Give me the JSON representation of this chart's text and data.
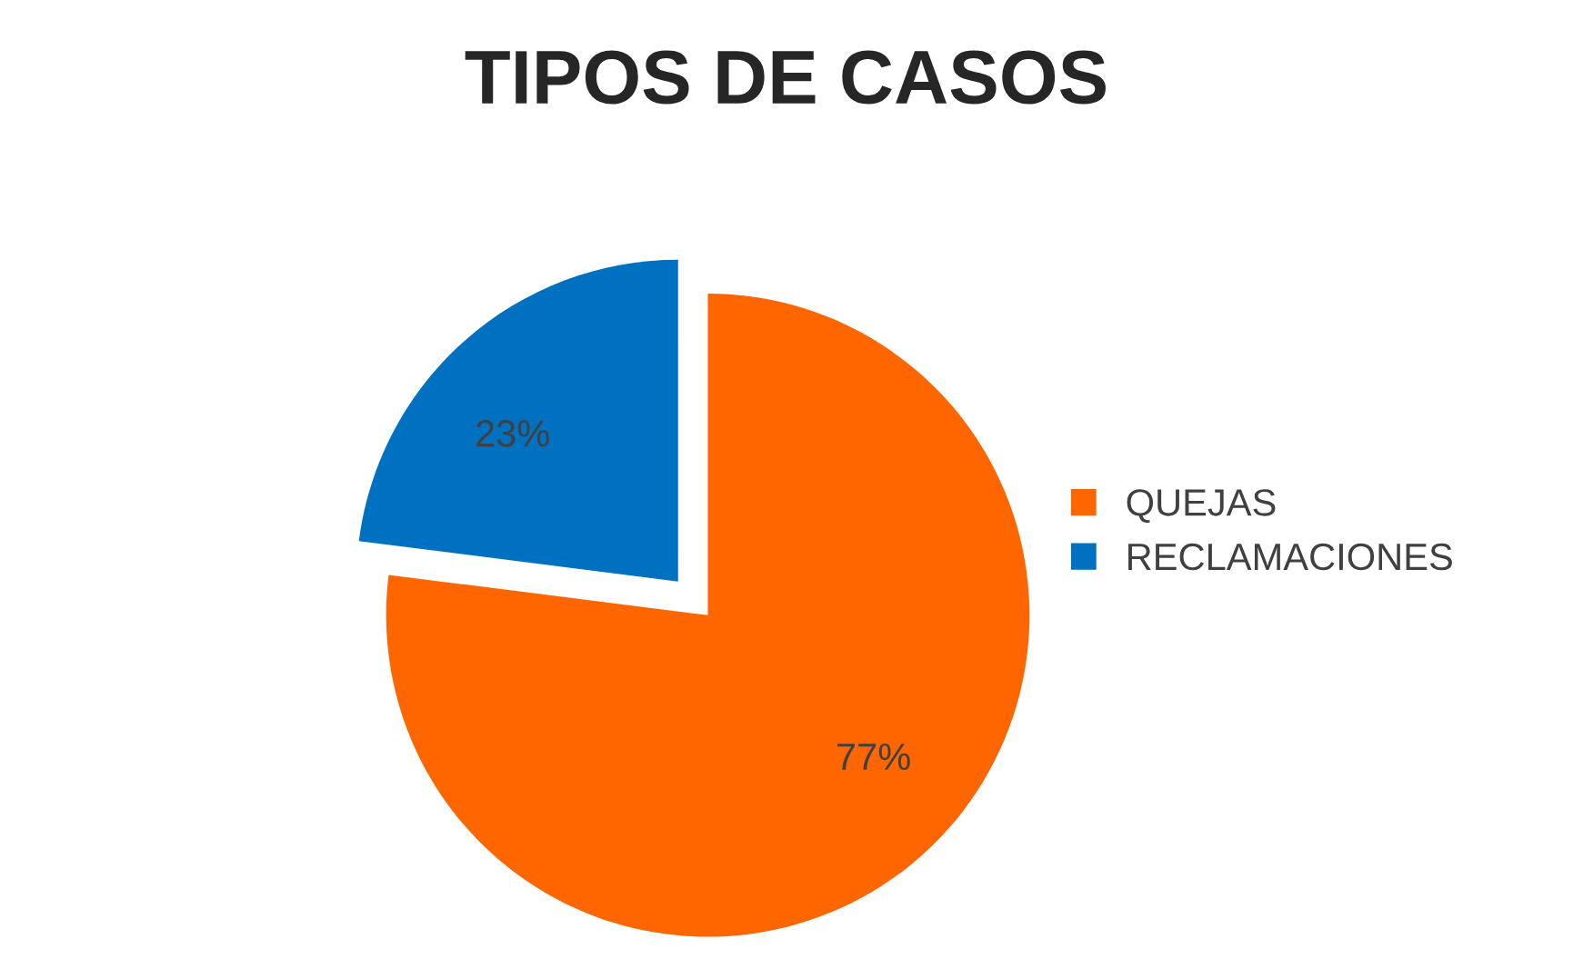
{
  "chart_data": {
    "type": "pie",
    "title": "TIPOS DE CASOS",
    "categories": [
      "QUEJAS",
      "RECLAMACIONES"
    ],
    "values": [
      77,
      23
    ],
    "colors": [
      "#ff6600",
      "#0070c0"
    ],
    "value_labels": [
      "77%",
      "23%"
    ],
    "legend": "right"
  }
}
